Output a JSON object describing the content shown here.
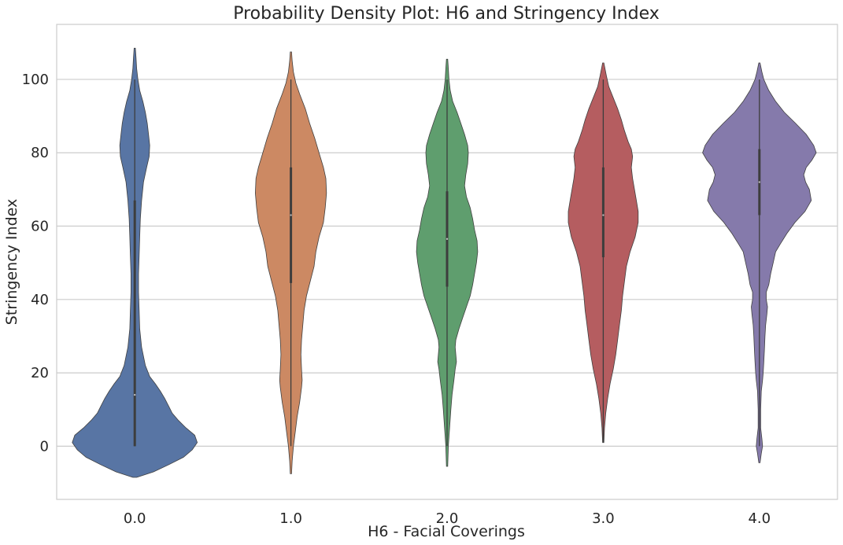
{
  "chart_data": {
    "type": "violin",
    "title": "Probability Density Plot: H6 and Stringency Index",
    "xlabel": "H6 - Facial Coverings",
    "ylabel": "Stringency Index",
    "ylim": [
      -14.5,
      115
    ],
    "yticks": [
      0,
      20,
      40,
      60,
      80,
      100
    ],
    "grid": "horizontal",
    "categories": [
      "0.0",
      "1.0",
      "2.0",
      "3.0",
      "4.0"
    ],
    "colors": [
      "#5875a4",
      "#cc8963",
      "#5f9e6e",
      "#b55d60",
      "#857aab"
    ],
    "violins": [
      {
        "category": "0.0",
        "min": 0,
        "q1": 0,
        "median": 14,
        "q3": 67,
        "max": 100,
        "range": [
          -8.5,
          108.5
        ],
        "profile": [
          [
            -8.5,
            0.03
          ],
          [
            -7,
            0.3
          ],
          [
            -5,
            0.55
          ],
          [
            -3,
            0.78
          ],
          [
            -1,
            0.92
          ],
          [
            1,
            1.0
          ],
          [
            3,
            0.96
          ],
          [
            5,
            0.82
          ],
          [
            7,
            0.7
          ],
          [
            9,
            0.6
          ],
          [
            11,
            0.54
          ],
          [
            13,
            0.48
          ],
          [
            15,
            0.41
          ],
          [
            17,
            0.33
          ],
          [
            19,
            0.24
          ],
          [
            22,
            0.17
          ],
          [
            27,
            0.11
          ],
          [
            32,
            0.08
          ],
          [
            37,
            0.07
          ],
          [
            42,
            0.06
          ],
          [
            47,
            0.06
          ],
          [
            52,
            0.07
          ],
          [
            57,
            0.08
          ],
          [
            62,
            0.09
          ],
          [
            67,
            0.11
          ],
          [
            72,
            0.14
          ],
          [
            76,
            0.19
          ],
          [
            79,
            0.23
          ],
          [
            82,
            0.24
          ],
          [
            85,
            0.22
          ],
          [
            88,
            0.2
          ],
          [
            91,
            0.17
          ],
          [
            94,
            0.13
          ],
          [
            97,
            0.08
          ],
          [
            100,
            0.05
          ],
          [
            103,
            0.03
          ],
          [
            106,
            0.02
          ],
          [
            108.5,
            0.01
          ]
        ]
      },
      {
        "category": "1.0",
        "min": 0,
        "q1": 44.5,
        "median": 63,
        "q3": 76,
        "max": 100,
        "range": [
          -7.5,
          107.5
        ],
        "profile": [
          [
            -7.5,
            0.01
          ],
          [
            -4,
            0.02
          ],
          [
            0,
            0.04
          ],
          [
            4,
            0.07
          ],
          [
            8,
            0.1
          ],
          [
            12,
            0.14
          ],
          [
            16,
            0.17
          ],
          [
            18,
            0.18
          ],
          [
            21,
            0.17
          ],
          [
            25,
            0.16
          ],
          [
            29,
            0.17
          ],
          [
            33,
            0.19
          ],
          [
            37,
            0.21
          ],
          [
            41,
            0.25
          ],
          [
            45,
            0.31
          ],
          [
            49,
            0.37
          ],
          [
            53,
            0.4
          ],
          [
            57,
            0.45
          ],
          [
            61,
            0.52
          ],
          [
            65,
            0.55
          ],
          [
            69,
            0.57
          ],
          [
            73,
            0.56
          ],
          [
            76,
            0.52
          ],
          [
            80,
            0.45
          ],
          [
            84,
            0.38
          ],
          [
            88,
            0.3
          ],
          [
            92,
            0.23
          ],
          [
            96,
            0.14
          ],
          [
            99,
            0.08
          ],
          [
            102,
            0.04
          ],
          [
            105,
            0.02
          ],
          [
            107.5,
            0.01
          ]
        ]
      },
      {
        "category": "2.0",
        "min": 0,
        "q1": 43.5,
        "median": 56.5,
        "q3": 69.5,
        "max": 100,
        "range": [
          -5.5,
          105.5
        ],
        "profile": [
          [
            -5.5,
            0.01
          ],
          [
            0,
            0.02
          ],
          [
            5,
            0.04
          ],
          [
            10,
            0.06
          ],
          [
            14,
            0.08
          ],
          [
            18,
            0.11
          ],
          [
            21,
            0.13
          ],
          [
            23,
            0.15
          ],
          [
            25,
            0.14
          ],
          [
            27,
            0.13
          ],
          [
            29,
            0.14
          ],
          [
            32,
            0.19
          ],
          [
            35,
            0.25
          ],
          [
            38,
            0.31
          ],
          [
            41,
            0.37
          ],
          [
            44,
            0.41
          ],
          [
            47,
            0.44
          ],
          [
            50,
            0.47
          ],
          [
            53,
            0.49
          ],
          [
            56,
            0.48
          ],
          [
            59,
            0.44
          ],
          [
            62,
            0.41
          ],
          [
            65,
            0.37
          ],
          [
            68,
            0.31
          ],
          [
            71,
            0.28
          ],
          [
            74,
            0.3
          ],
          [
            77,
            0.33
          ],
          [
            80,
            0.34
          ],
          [
            82,
            0.33
          ],
          [
            85,
            0.28
          ],
          [
            88,
            0.22
          ],
          [
            91,
            0.16
          ],
          [
            94,
            0.09
          ],
          [
            97,
            0.05
          ],
          [
            100,
            0.03
          ],
          [
            103,
            0.02
          ],
          [
            105.5,
            0.01
          ]
        ]
      },
      {
        "category": "3.0",
        "min": 1,
        "q1": 51.5,
        "median": 63,
        "q3": 76,
        "max": 100,
        "range": [
          1,
          104.5
        ],
        "profile": [
          [
            1,
            0.01
          ],
          [
            5,
            0.02
          ],
          [
            9,
            0.04
          ],
          [
            13,
            0.07
          ],
          [
            17,
            0.11
          ],
          [
            21,
            0.16
          ],
          [
            25,
            0.2
          ],
          [
            29,
            0.23
          ],
          [
            33,
            0.26
          ],
          [
            37,
            0.29
          ],
          [
            41,
            0.31
          ],
          [
            45,
            0.34
          ],
          [
            49,
            0.37
          ],
          [
            53,
            0.43
          ],
          [
            57,
            0.51
          ],
          [
            61,
            0.56
          ],
          [
            64,
            0.56
          ],
          [
            67,
            0.53
          ],
          [
            70,
            0.5
          ],
          [
            73,
            0.47
          ],
          [
            76,
            0.45
          ],
          [
            79,
            0.47
          ],
          [
            81,
            0.45
          ],
          [
            83,
            0.4
          ],
          [
            86,
            0.34
          ],
          [
            89,
            0.29
          ],
          [
            92,
            0.23
          ],
          [
            95,
            0.16
          ],
          [
            98,
            0.09
          ],
          [
            101,
            0.05
          ],
          [
            104.5,
            0.01
          ]
        ]
      },
      {
        "category": "4.0",
        "min": 0,
        "q1": 63,
        "median": 72,
        "q3": 81,
        "max": 100,
        "range": [
          -4.5,
          104.5
        ],
        "profile": [
          [
            -4.5,
            0.01
          ],
          [
            -2,
            0.03
          ],
          [
            0,
            0.05
          ],
          [
            2,
            0.04
          ],
          [
            5,
            0.02
          ],
          [
            10,
            0.02
          ],
          [
            15,
            0.03
          ],
          [
            18,
            0.05
          ],
          [
            20,
            0.06
          ],
          [
            23,
            0.07
          ],
          [
            26,
            0.08
          ],
          [
            30,
            0.09
          ],
          [
            33,
            0.1
          ],
          [
            36,
            0.12
          ],
          [
            38,
            0.13
          ],
          [
            40,
            0.11
          ],
          [
            42,
            0.11
          ],
          [
            44,
            0.15
          ],
          [
            47,
            0.18
          ],
          [
            50,
            0.22
          ],
          [
            53,
            0.26
          ],
          [
            55,
            0.33
          ],
          [
            58,
            0.44
          ],
          [
            61,
            0.57
          ],
          [
            64,
            0.73
          ],
          [
            67,
            0.83
          ],
          [
            70,
            0.8
          ],
          [
            72,
            0.74
          ],
          [
            74,
            0.71
          ],
          [
            76,
            0.75
          ],
          [
            78,
            0.84
          ],
          [
            80,
            0.91
          ],
          [
            82,
            0.87
          ],
          [
            85,
            0.75
          ],
          [
            88,
            0.58
          ],
          [
            91,
            0.4
          ],
          [
            94,
            0.26
          ],
          [
            97,
            0.15
          ],
          [
            100,
            0.07
          ],
          [
            102,
            0.04
          ],
          [
            104.5,
            0.01
          ]
        ]
      }
    ]
  }
}
